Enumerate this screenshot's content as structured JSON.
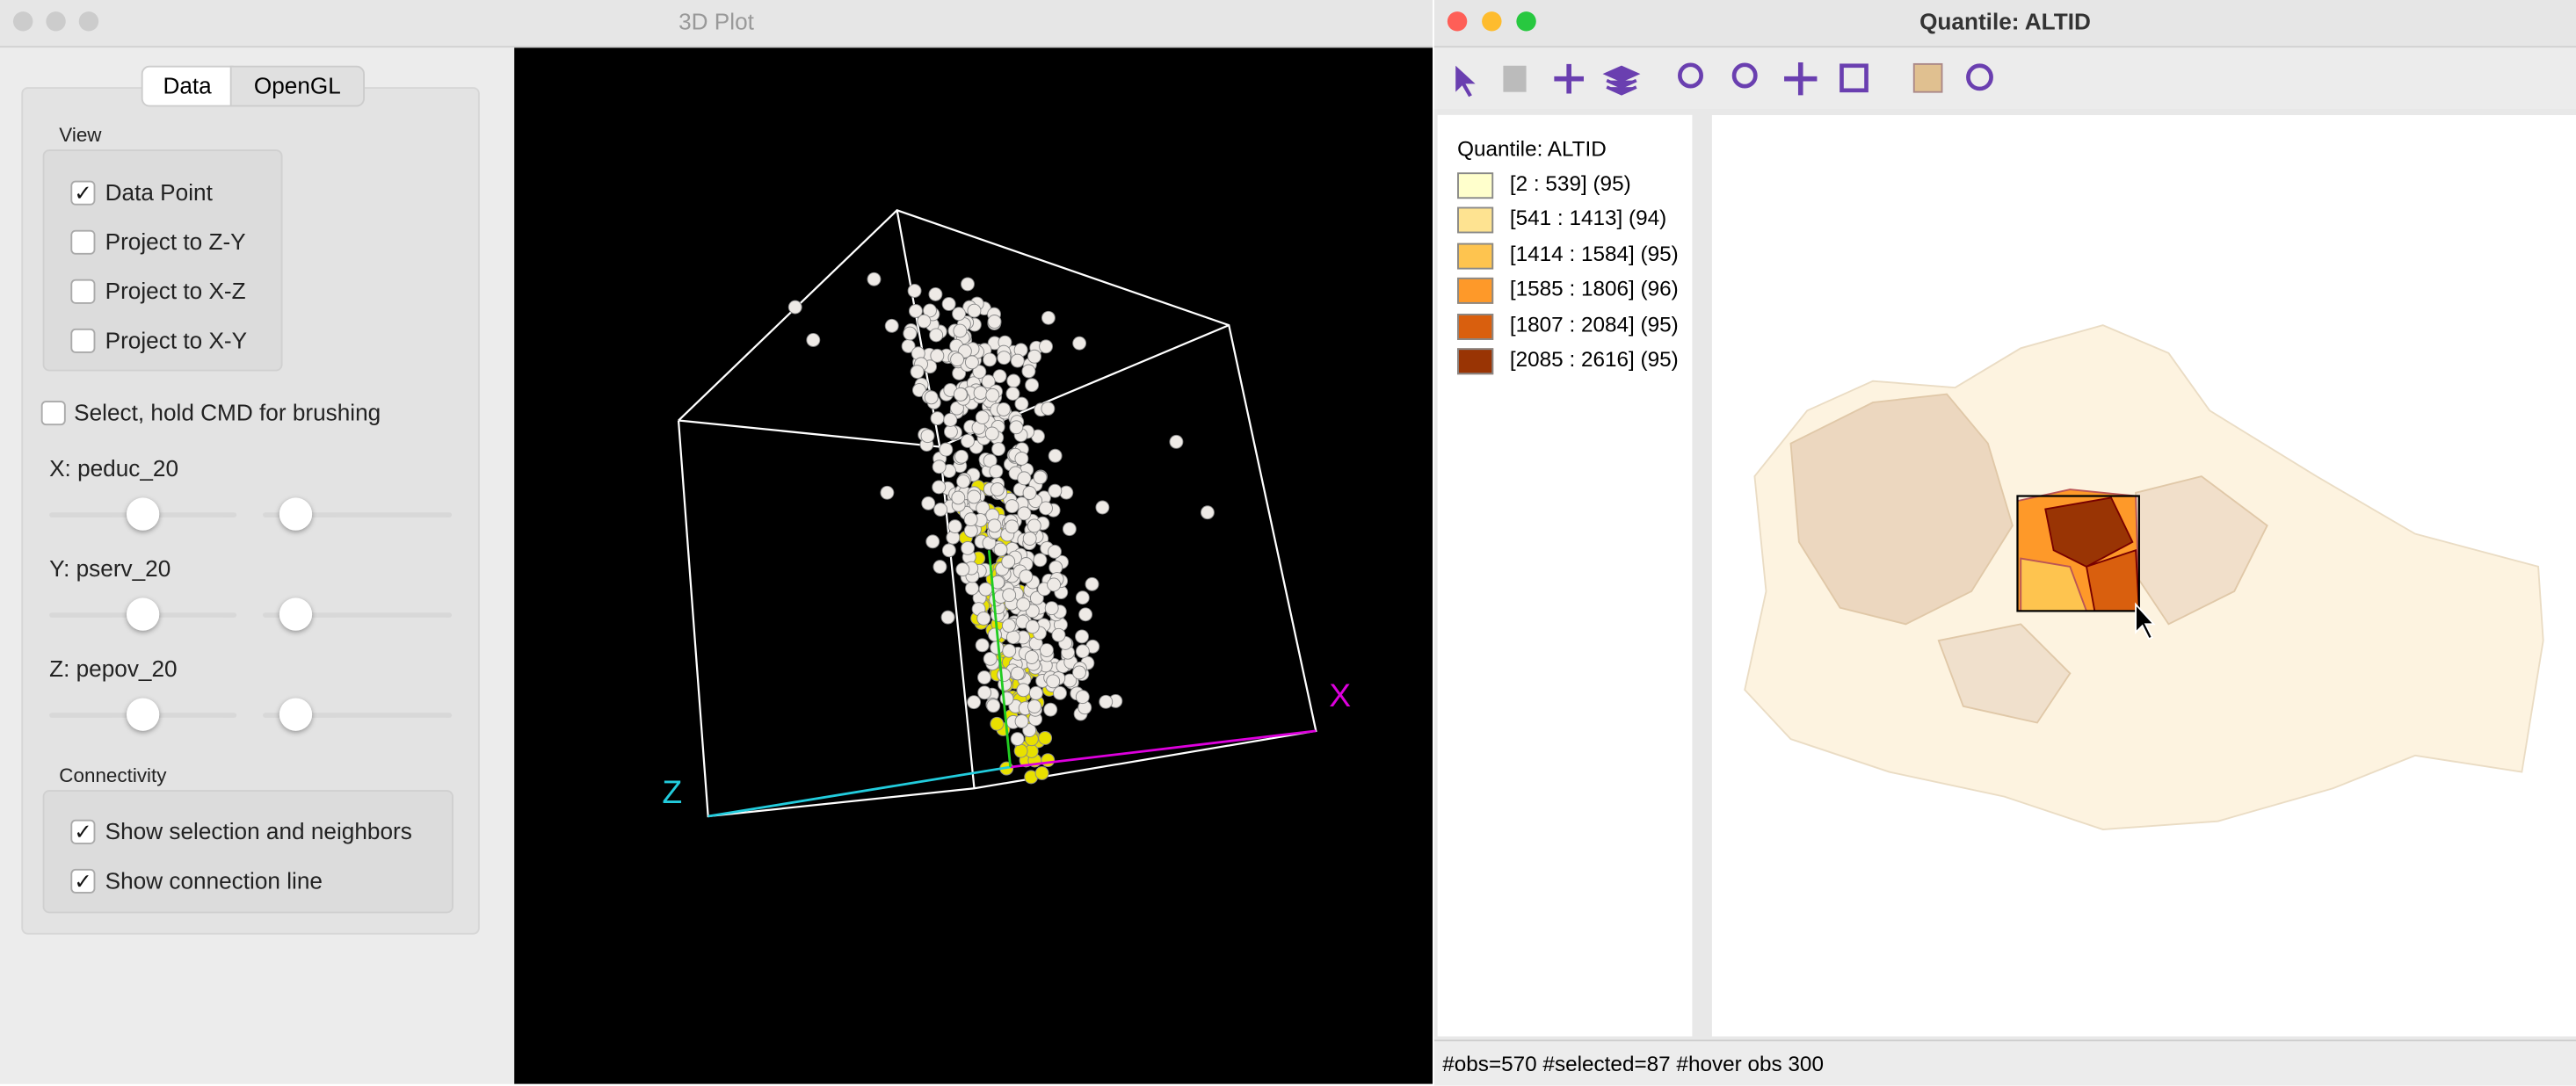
{
  "left_window": {
    "title": "3D Plot",
    "tabs": [
      "Data",
      "OpenGL"
    ],
    "active_tab": 0,
    "view": {
      "label": "View",
      "options": [
        {
          "label": "Data Point",
          "checked": true
        },
        {
          "label": "Project to Z-Y",
          "checked": false
        },
        {
          "label": "Project to X-Z",
          "checked": false
        },
        {
          "label": "Project to X-Y",
          "checked": false
        }
      ]
    },
    "select": {
      "label": "Select, hold CMD for brushing",
      "checked": false
    },
    "sliders": [
      "X: peduc_20",
      "Y: pserv_20",
      "Z: pepov_20"
    ],
    "connectivity": {
      "label": "Connectivity",
      "options": [
        {
          "label": "Show selection and neighbors",
          "checked": true
        },
        {
          "label": "Show connection line",
          "checked": true
        }
      ]
    },
    "axes": {
      "x": "X",
      "z": "Z"
    }
  },
  "right_window": {
    "title": "Quantile: ALTID",
    "legend": {
      "title": "Quantile: ALTID",
      "items": [
        {
          "label": "[2 : 539] (95)",
          "color": "#ffffcc"
        },
        {
          "label": "[541 : 1413] (94)",
          "color": "#fee391"
        },
        {
          "label": "[1414 : 1584] (95)",
          "color": "#fec44f"
        },
        {
          "label": "[1585 : 1806] (96)",
          "color": "#fe9929"
        },
        {
          "label": "[1807 : 2084] (95)",
          "color": "#d95f0e"
        },
        {
          "label": "[2085 : 2616] (95)",
          "color": "#993404"
        }
      ]
    },
    "status": "#obs=570 #selected=87  #hover obs 300"
  }
}
